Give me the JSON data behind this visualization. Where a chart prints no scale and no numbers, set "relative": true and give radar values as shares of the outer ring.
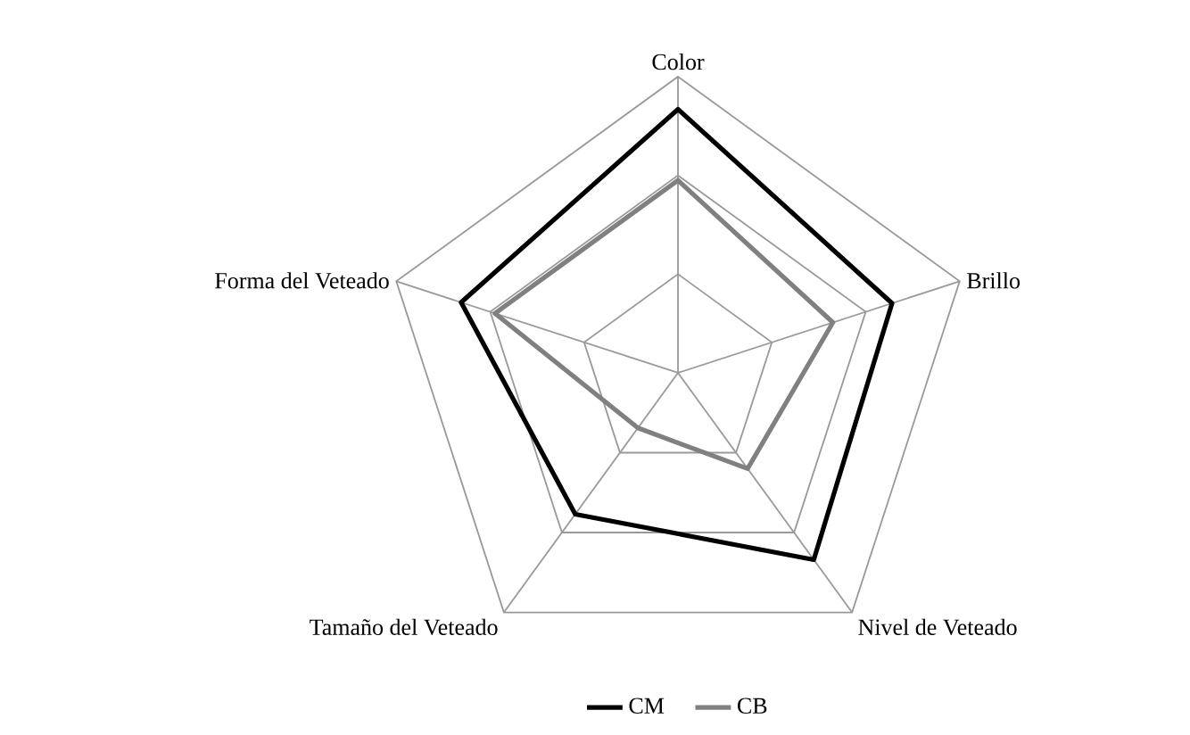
{
  "chart_data": {
    "type": "radar",
    "relative": true,
    "grid": true,
    "legend": "bottom",
    "marker": "none",
    "categories": [
      "Color",
      "Brillo",
      "Nivel de Veteado",
      "Tamaño del Veteado",
      "Forma del Veteado"
    ],
    "series": [
      {
        "name": "CM",
        "color": "#000000",
        "values": [
          0.89,
          0.76,
          0.78,
          0.59,
          0.77
        ]
      },
      {
        "name": "CB",
        "color": "#808080",
        "values": [
          0.65,
          0.55,
          0.4,
          0.23,
          0.65
        ]
      }
    ]
  }
}
